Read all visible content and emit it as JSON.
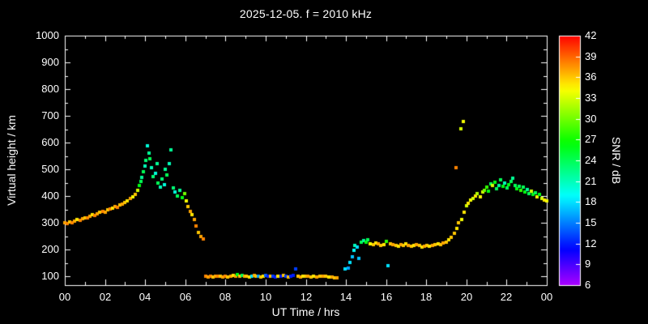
{
  "title": "2025-12-05. f = 2010 kHz",
  "style": {
    "background": "#000000",
    "foreground": "#ffffff"
  },
  "axes": {
    "x_label": "UT Time / hrs",
    "y_label": "Virtual height / km",
    "x_ticks": [
      "00",
      "02",
      "04",
      "06",
      "08",
      "10",
      "12",
      "14",
      "16",
      "18",
      "20",
      "22",
      "00"
    ],
    "x_tick_hours": [
      0,
      2,
      4,
      6,
      8,
      10,
      12,
      14,
      16,
      18,
      20,
      22,
      24
    ],
    "y_ticks": [
      100,
      200,
      300,
      400,
      500,
      600,
      700,
      800,
      900,
      1000
    ],
    "x_range_hours": [
      0,
      24
    ],
    "y_range_km": [
      66,
      1000
    ]
  },
  "colorbar": {
    "label": "SNR / dB",
    "ticks": [
      6,
      9,
      12,
      15,
      18,
      21,
      24,
      27,
      30,
      33,
      36,
      39,
      42
    ],
    "min": 6,
    "max": 42,
    "colormap": "rainbow",
    "min_color": "#8800ff",
    "mid_color": "#00ffcc",
    "max_color": "#ff0000"
  },
  "chart_data": {
    "type": "scatter",
    "title": "2025-12-05. f = 2010 kHz",
    "xlabel": "UT Time / hrs",
    "ylabel": "Virtual height / km",
    "color_label": "SNR / dB",
    "xlim": [
      0,
      24
    ],
    "ylim": [
      66,
      1000
    ],
    "snr_range": [
      6,
      42
    ],
    "point_format": [
      "ut_hours",
      "virtual_height_km",
      "snr_db"
    ],
    "points": [
      [
        0.0,
        300,
        37
      ],
      [
        0.12,
        296,
        38
      ],
      [
        0.25,
        303,
        36
      ],
      [
        0.38,
        299,
        38
      ],
      [
        0.5,
        307,
        37
      ],
      [
        0.62,
        312,
        35
      ],
      [
        0.75,
        309,
        38
      ],
      [
        0.88,
        315,
        37
      ],
      [
        1.0,
        319,
        36
      ],
      [
        1.12,
        317,
        38
      ],
      [
        1.25,
        323,
        37
      ],
      [
        1.38,
        329,
        35
      ],
      [
        1.5,
        326,
        38
      ],
      [
        1.62,
        333,
        37
      ],
      [
        1.75,
        338,
        36
      ],
      [
        1.88,
        343,
        38
      ],
      [
        2.0,
        340,
        37
      ],
      [
        2.12,
        347,
        36
      ],
      [
        2.25,
        352,
        38
      ],
      [
        2.38,
        356,
        35
      ],
      [
        2.5,
        361,
        37
      ],
      [
        2.62,
        358,
        38
      ],
      [
        2.75,
        366,
        36
      ],
      [
        2.88,
        371,
        37
      ],
      [
        3.0,
        377,
        36
      ],
      [
        3.12,
        383,
        35
      ],
      [
        3.25,
        390,
        37
      ],
      [
        3.38,
        397,
        34
      ],
      [
        3.5,
        406,
        36
      ],
      [
        3.62,
        420,
        33
      ],
      [
        3.7,
        438,
        26
      ],
      [
        3.78,
        455,
        24
      ],
      [
        3.85,
        470,
        22
      ],
      [
        3.92,
        492,
        24
      ],
      [
        4.0,
        512,
        21
      ],
      [
        4.05,
        532,
        23
      ],
      [
        4.1,
        588,
        20
      ],
      [
        4.18,
        560,
        22
      ],
      [
        4.25,
        540,
        24
      ],
      [
        4.32,
        505,
        21
      ],
      [
        4.4,
        472,
        23
      ],
      [
        4.5,
        486,
        20
      ],
      [
        4.58,
        520,
        22
      ],
      [
        4.65,
        450,
        24
      ],
      [
        4.75,
        432,
        21
      ],
      [
        4.85,
        465,
        23
      ],
      [
        4.95,
        442,
        20
      ],
      [
        5.02,
        500,
        22
      ],
      [
        5.1,
        478,
        24
      ],
      [
        5.2,
        522,
        21
      ],
      [
        5.3,
        572,
        22
      ],
      [
        5.4,
        430,
        23
      ],
      [
        5.5,
        415,
        20
      ],
      [
        5.6,
        400,
        24
      ],
      [
        5.72,
        420,
        22
      ],
      [
        5.85,
        393,
        26
      ],
      [
        5.95,
        408,
        30
      ],
      [
        6.05,
        382,
        34
      ],
      [
        6.15,
        362,
        36
      ],
      [
        6.25,
        342,
        37
      ],
      [
        6.35,
        330,
        35
      ],
      [
        6.45,
        312,
        37
      ],
      [
        6.55,
        288,
        38
      ],
      [
        6.65,
        265,
        36
      ],
      [
        6.78,
        250,
        37
      ],
      [
        6.9,
        240,
        38
      ],
      [
        7.0,
        100,
        38
      ],
      [
        7.12,
        98,
        37
      ],
      [
        7.25,
        100,
        38
      ],
      [
        7.38,
        97,
        36
      ],
      [
        7.5,
        100,
        37
      ],
      [
        7.62,
        99,
        38
      ],
      [
        7.75,
        101,
        36
      ],
      [
        7.88,
        98,
        37
      ],
      [
        8.0,
        100,
        38
      ],
      [
        8.12,
        97,
        36
      ],
      [
        8.25,
        100,
        37
      ],
      [
        8.38,
        102,
        35
      ],
      [
        8.5,
        99,
        37
      ],
      [
        8.6,
        107,
        26
      ],
      [
        8.72,
        100,
        36
      ],
      [
        8.82,
        104,
        24
      ],
      [
        8.95,
        99,
        37
      ],
      [
        9.05,
        101,
        36
      ],
      [
        9.18,
        98,
        35
      ],
      [
        9.3,
        100,
        18
      ],
      [
        9.42,
        103,
        37
      ],
      [
        9.52,
        99,
        36
      ],
      [
        9.65,
        101,
        16
      ],
      [
        9.78,
        98,
        36
      ],
      [
        9.9,
        100,
        35
      ],
      [
        10.0,
        102,
        14
      ],
      [
        10.12,
        99,
        12
      ],
      [
        10.25,
        101,
        36
      ],
      [
        10.38,
        100,
        13
      ],
      [
        10.5,
        98,
        12
      ],
      [
        10.62,
        101,
        35
      ],
      [
        10.75,
        99,
        12
      ],
      [
        10.88,
        102,
        36
      ],
      [
        11.0,
        100,
        13
      ],
      [
        11.12,
        98,
        36
      ],
      [
        11.25,
        101,
        12
      ],
      [
        11.38,
        104,
        12
      ],
      [
        11.5,
        126,
        13
      ],
      [
        11.6,
        100,
        36
      ],
      [
        11.72,
        98,
        37
      ],
      [
        11.85,
        101,
        35
      ],
      [
        12.0,
        99,
        36
      ],
      [
        12.12,
        100,
        37
      ],
      [
        12.25,
        97,
        36
      ],
      [
        12.4,
        100,
        35
      ],
      [
        12.55,
        98,
        37
      ],
      [
        12.7,
        101,
        36
      ],
      [
        12.85,
        99,
        37
      ],
      [
        13.0,
        100,
        36
      ],
      [
        13.15,
        98,
        35
      ],
      [
        13.3,
        96,
        37
      ],
      [
        13.42,
        95,
        36
      ],
      [
        13.55,
        94,
        37
      ],
      [
        13.95,
        128,
        18
      ],
      [
        14.1,
        131,
        16
      ],
      [
        14.2,
        152,
        18
      ],
      [
        14.3,
        172,
        17
      ],
      [
        14.38,
        198,
        19
      ],
      [
        14.45,
        215,
        21
      ],
      [
        14.55,
        208,
        18
      ],
      [
        14.65,
        166,
        17
      ],
      [
        14.78,
        228,
        24
      ],
      [
        14.9,
        232,
        22
      ],
      [
        15.0,
        228,
        26
      ],
      [
        15.1,
        236,
        24
      ],
      [
        15.2,
        222,
        34
      ],
      [
        15.35,
        218,
        36
      ],
      [
        15.5,
        225,
        35
      ],
      [
        15.62,
        220,
        37
      ],
      [
        15.75,
        215,
        36
      ],
      [
        15.88,
        218,
        35
      ],
      [
        16.0,
        230,
        28
      ],
      [
        16.1,
        140,
        18
      ],
      [
        16.2,
        222,
        36
      ],
      [
        16.35,
        218,
        37
      ],
      [
        16.5,
        215,
        36
      ],
      [
        16.62,
        212,
        35
      ],
      [
        16.75,
        218,
        37
      ],
      [
        16.88,
        215,
        36
      ],
      [
        17.0,
        220,
        35
      ],
      [
        17.12,
        216,
        37
      ],
      [
        17.25,
        212,
        36
      ],
      [
        17.4,
        215,
        35
      ],
      [
        17.52,
        218,
        37
      ],
      [
        17.65,
        214,
        36
      ],
      [
        17.78,
        210,
        35
      ],
      [
        17.9,
        213,
        37
      ],
      [
        18.02,
        216,
        36
      ],
      [
        18.15,
        212,
        35
      ],
      [
        18.3,
        215,
        37
      ],
      [
        18.45,
        218,
        36
      ],
      [
        18.6,
        222,
        35
      ],
      [
        18.72,
        218,
        36
      ],
      [
        18.85,
        225,
        37
      ],
      [
        19.0,
        228,
        36
      ],
      [
        19.12,
        235,
        35
      ],
      [
        19.25,
        245,
        36
      ],
      [
        19.4,
        262,
        36
      ],
      [
        19.5,
        505,
        38
      ],
      [
        19.52,
        278,
        35
      ],
      [
        19.62,
        300,
        36
      ],
      [
        19.72,
        652,
        33
      ],
      [
        19.75,
        312,
        34
      ],
      [
        19.85,
        680,
        34
      ],
      [
        19.88,
        340,
        35
      ],
      [
        20.0,
        365,
        33
      ],
      [
        20.1,
        372,
        35
      ],
      [
        20.2,
        385,
        34
      ],
      [
        20.32,
        392,
        33
      ],
      [
        20.45,
        400,
        35
      ],
      [
        20.55,
        408,
        32
      ],
      [
        20.68,
        398,
        34
      ],
      [
        20.8,
        415,
        33
      ],
      [
        20.9,
        422,
        30
      ],
      [
        21.0,
        432,
        28
      ],
      [
        21.1,
        418,
        26
      ],
      [
        21.2,
        445,
        24
      ],
      [
        21.3,
        438,
        33
      ],
      [
        21.4,
        452,
        26
      ],
      [
        21.5,
        428,
        24
      ],
      [
        21.62,
        440,
        22
      ],
      [
        21.72,
        462,
        24
      ],
      [
        21.82,
        435,
        26
      ],
      [
        21.92,
        448,
        21
      ],
      [
        22.02,
        430,
        24
      ],
      [
        22.12,
        442,
        26
      ],
      [
        22.22,
        455,
        24
      ],
      [
        22.32,
        468,
        22
      ],
      [
        22.42,
        440,
        24
      ],
      [
        22.52,
        428,
        26
      ],
      [
        22.62,
        435,
        24
      ],
      [
        22.72,
        420,
        28
      ],
      [
        22.82,
        432,
        24
      ],
      [
        22.92,
        415,
        26
      ],
      [
        23.02,
        425,
        22
      ],
      [
        23.12,
        410,
        24
      ],
      [
        23.22,
        418,
        33
      ],
      [
        23.32,
        405,
        26
      ],
      [
        23.42,
        412,
        24
      ],
      [
        23.52,
        398,
        34
      ],
      [
        23.62,
        405,
        26
      ],
      [
        23.75,
        392,
        33
      ],
      [
        23.88,
        385,
        35
      ],
      [
        24.0,
        382,
        34
      ]
    ]
  }
}
